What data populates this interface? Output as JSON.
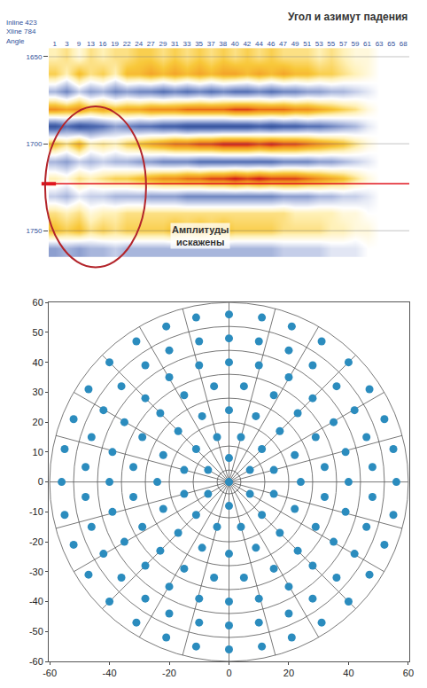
{
  "chart_data": [
    {
      "type": "heatmap",
      "title": "Угол и азимут падения",
      "header": [
        "Inline 423",
        "Xline 784",
        "Angle"
      ],
      "categories": [
        1,
        3,
        9,
        13,
        16,
        19,
        22,
        24,
        27,
        29,
        31,
        33,
        35,
        37,
        38,
        40,
        42,
        44,
        46,
        47,
        49,
        51,
        53,
        55,
        57,
        59,
        61,
        63,
        65,
        68
      ],
      "y": [
        1650,
        1660,
        1670,
        1680,
        1690,
        1700,
        1710,
        1720,
        1730,
        1740,
        1750,
        1760
      ],
      "cells": [
        [
          0.2,
          0.3,
          0.1,
          0.3,
          0.2,
          0.3,
          0.3,
          0.4,
          0.4,
          0.3,
          0.4,
          0.3,
          0.4,
          0.3,
          0.4,
          0.3,
          0.4,
          0.3,
          0.4,
          0.3,
          0.3,
          0.3,
          0.2,
          0.3,
          0.2,
          0.1,
          0.1,
          0,
          0,
          0
        ],
        [
          0.4,
          0.2,
          0.5,
          0.3,
          0.4,
          0.2,
          0.5,
          0.5,
          0.6,
          0.5,
          0.6,
          0.5,
          0.6,
          0.5,
          0.6,
          0.6,
          0.5,
          0.6,
          0.5,
          0.6,
          0.5,
          0.5,
          0.4,
          0.4,
          0.3,
          0.2,
          0.1,
          0,
          0,
          0
        ],
        [
          -0.3,
          -0.5,
          -0.2,
          -0.4,
          -0.3,
          -0.5,
          -0.4,
          -0.5,
          -0.5,
          -0.6,
          -0.5,
          -0.6,
          -0.5,
          -0.6,
          -0.5,
          -0.6,
          -0.6,
          -0.5,
          -0.6,
          -0.5,
          -0.5,
          -0.4,
          -0.4,
          -0.3,
          -0.3,
          -0.2,
          -0.1,
          0,
          0,
          0
        ],
        [
          0.7,
          0.6,
          0.7,
          0.5,
          0.6,
          0.5,
          0.6,
          0.6,
          0.7,
          0.7,
          0.7,
          0.8,
          0.8,
          0.8,
          0.8,
          0.9,
          0.9,
          0.8,
          0.8,
          0.8,
          0.7,
          0.7,
          0.6,
          0.5,
          0.4,
          0.3,
          0.1,
          0,
          0,
          0
        ],
        [
          -0.8,
          -0.6,
          -0.8,
          -0.7,
          -0.6,
          -0.4,
          -0.5,
          -0.6,
          -0.6,
          -0.7,
          -0.7,
          -0.8,
          -0.8,
          -0.8,
          -0.8,
          -0.8,
          -0.8,
          -0.7,
          -0.8,
          -0.7,
          -0.7,
          -0.6,
          -0.6,
          -0.5,
          -0.4,
          -0.3,
          -0.1,
          0,
          0,
          0
        ],
        [
          0.5,
          0.3,
          0.6,
          0.2,
          0.3,
          0.2,
          0.4,
          0.5,
          0.6,
          0.7,
          0.8,
          0.8,
          0.9,
          0.9,
          1,
          1,
          1,
          0.9,
          1,
          0.9,
          0.9,
          0.8,
          0.7,
          0.6,
          0.5,
          0.3,
          0.1,
          0,
          0,
          0
        ],
        [
          -0.3,
          -0.4,
          -0.2,
          -0.3,
          -0.2,
          -0.3,
          -0.3,
          -0.4,
          -0.4,
          -0.5,
          -0.5,
          -0.5,
          -0.6,
          -0.6,
          -0.6,
          -0.6,
          -0.6,
          -0.6,
          -0.6,
          -0.5,
          -0.5,
          -0.5,
          -0.4,
          -0.4,
          -0.3,
          -0.2,
          -0.1,
          0,
          0,
          0
        ],
        [
          0.2,
          0.1,
          0.3,
          0.2,
          0.3,
          0.4,
          0.4,
          0.5,
          0.6,
          0.7,
          0.7,
          0.8,
          0.8,
          0.9,
          0.9,
          1,
          0.9,
          1,
          0.9,
          0.9,
          0.9,
          0.8,
          0.7,
          0.6,
          0.5,
          0.3,
          0.1,
          0,
          0,
          0
        ],
        [
          -0.2,
          -0.3,
          -0.1,
          -0.2,
          -0.2,
          -0.3,
          -0.3,
          -0.3,
          -0.4,
          -0.4,
          -0.4,
          -0.5,
          -0.5,
          -0.5,
          -0.5,
          -0.5,
          -0.5,
          -0.5,
          -0.5,
          -0.4,
          -0.4,
          -0.4,
          -0.3,
          -0.3,
          -0.2,
          -0.2,
          -0.1,
          0,
          0,
          0
        ],
        [
          0.3,
          0.2,
          0.3,
          0.1,
          0.2,
          0.2,
          0.3,
          0.3,
          0.3,
          0.3,
          0.3,
          0.3,
          0.3,
          0.3,
          0.3,
          0.3,
          0.3,
          0.3,
          0.3,
          0.3,
          0.2,
          0.2,
          0.2,
          0.2,
          0.1,
          0.1,
          0,
          0,
          0,
          0
        ],
        [
          0.5,
          0.4,
          0.5,
          0.3,
          0.4,
          0.3,
          0.4,
          0.4,
          0.4,
          0.4,
          0.5,
          0.4,
          0.5,
          0.4,
          0.5,
          0.4,
          0.4,
          0.4,
          0.4,
          0.3,
          0.3,
          0.3,
          0.3,
          0.2,
          0.2,
          0.1,
          0.1,
          0,
          0,
          0
        ],
        [
          -0.4,
          -0.3,
          -0.4,
          -0.3,
          -0.3,
          -0.2,
          -0.3,
          -0.3,
          -0.3,
          -0.3,
          -0.3,
          -0.3,
          -0.3,
          -0.3,
          -0.3,
          -0.3,
          -0.3,
          -0.3,
          -0.3,
          -0.2,
          -0.2,
          -0.2,
          -0.2,
          -0.1,
          -0.1,
          -0.1,
          0,
          0,
          0,
          0
        ]
      ],
      "zlim": [
        -1,
        1
      ],
      "ylim": [
        1765,
        1645
      ],
      "yticks": [
        1650,
        1700,
        1750
      ],
      "horizon": 1723,
      "annotations": [
        {
          "text": "Амплитуды искажены"
        }
      ],
      "grid": true
    },
    {
      "type": "scatter",
      "x": [
        0,
        0,
        -7,
        -7,
        0,
        7,
        7,
        15,
        11,
        4,
        -4,
        -11,
        -15,
        -15,
        -11,
        -4,
        4,
        11,
        15,
        24,
        22,
        17,
        9,
        0,
        -9,
        -17,
        -22,
        -24,
        -22,
        -17,
        -9,
        0,
        9,
        17,
        22,
        32,
        29,
        23,
        15,
        5,
        -5,
        -15,
        -23,
        -29,
        -32,
        -32,
        -29,
        -23,
        -15,
        -5,
        5,
        15,
        23,
        29,
        32,
        40,
        39,
        35,
        28,
        20,
        10,
        0,
        -10,
        -20,
        -28,
        -35,
        -39,
        -40,
        -39,
        -35,
        -28,
        -20,
        -10,
        0,
        10,
        20,
        28,
        35,
        39,
        48,
        46,
        42,
        36,
        28,
        20,
        10,
        0,
        -10,
        -20,
        -28,
        -36,
        -42,
        -46,
        -48,
        -48,
        -46,
        -42,
        -36,
        -28,
        -20,
        -10,
        0,
        10,
        20,
        28,
        36,
        42,
        46,
        48,
        56,
        55,
        52,
        47,
        40,
        31,
        21,
        11,
        0,
        -11,
        -21,
        -31,
        -40,
        -47,
        -52,
        -55,
        -56,
        -55,
        -52,
        -47,
        -40,
        -31,
        -21,
        -11,
        0,
        11,
        21,
        31,
        40,
        47,
        52,
        55
      ],
      "y": [
        0,
        8,
        4,
        -4,
        -8,
        -4,
        4,
        4,
        11,
        15,
        15,
        11,
        4,
        -4,
        -11,
        -15,
        -15,
        -11,
        -4,
        0,
        9,
        17,
        22,
        24,
        22,
        17,
        9,
        0,
        -9,
        -17,
        -22,
        -24,
        -22,
        -17,
        -9,
        5,
        15,
        23,
        29,
        32,
        32,
        29,
        23,
        15,
        5,
        -5,
        -15,
        -23,
        -29,
        -32,
        -32,
        -29,
        -23,
        -15,
        -5,
        0,
        10,
        20,
        28,
        35,
        39,
        40,
        39,
        35,
        28,
        20,
        10,
        0,
        -10,
        -20,
        -28,
        -35,
        -39,
        -40,
        -39,
        -35,
        -28,
        -20,
        -10,
        5,
        15,
        24,
        32,
        39,
        44,
        47,
        48,
        47,
        44,
        39,
        32,
        24,
        15,
        5,
        -5,
        -15,
        -24,
        -32,
        -39,
        -44,
        -47,
        -48,
        -47,
        -44,
        -39,
        -32,
        -24,
        -15,
        -5,
        0,
        11,
        21,
        31,
        40,
        47,
        52,
        55,
        56,
        55,
        52,
        47,
        40,
        31,
        21,
        11,
        0,
        -11,
        -21,
        -31,
        -40,
        -47,
        -52,
        -55,
        -56,
        -55,
        -52,
        -47,
        -40,
        -31,
        -21,
        -11
      ],
      "xlim": [
        -60,
        60
      ],
      "ylim": [
        -60,
        60
      ],
      "xticks": [
        -60,
        -40,
        -20,
        0,
        20,
        40,
        60
      ],
      "yticks": [
        -60,
        -50,
        -40,
        -30,
        -20,
        -10,
        0,
        10,
        20,
        30,
        40,
        50,
        60
      ],
      "grid": true,
      "grid_radii": [
        4,
        12,
        20,
        28,
        36,
        44,
        52,
        60
      ],
      "grid_azimuths": [
        0,
        15,
        30,
        45,
        60,
        75,
        90,
        105,
        120,
        135,
        150,
        165,
        180,
        195,
        210,
        225,
        240,
        255,
        270,
        285,
        300,
        315,
        330,
        345
      ],
      "color": "#2b8cbe",
      "marker": "circle"
    }
  ]
}
